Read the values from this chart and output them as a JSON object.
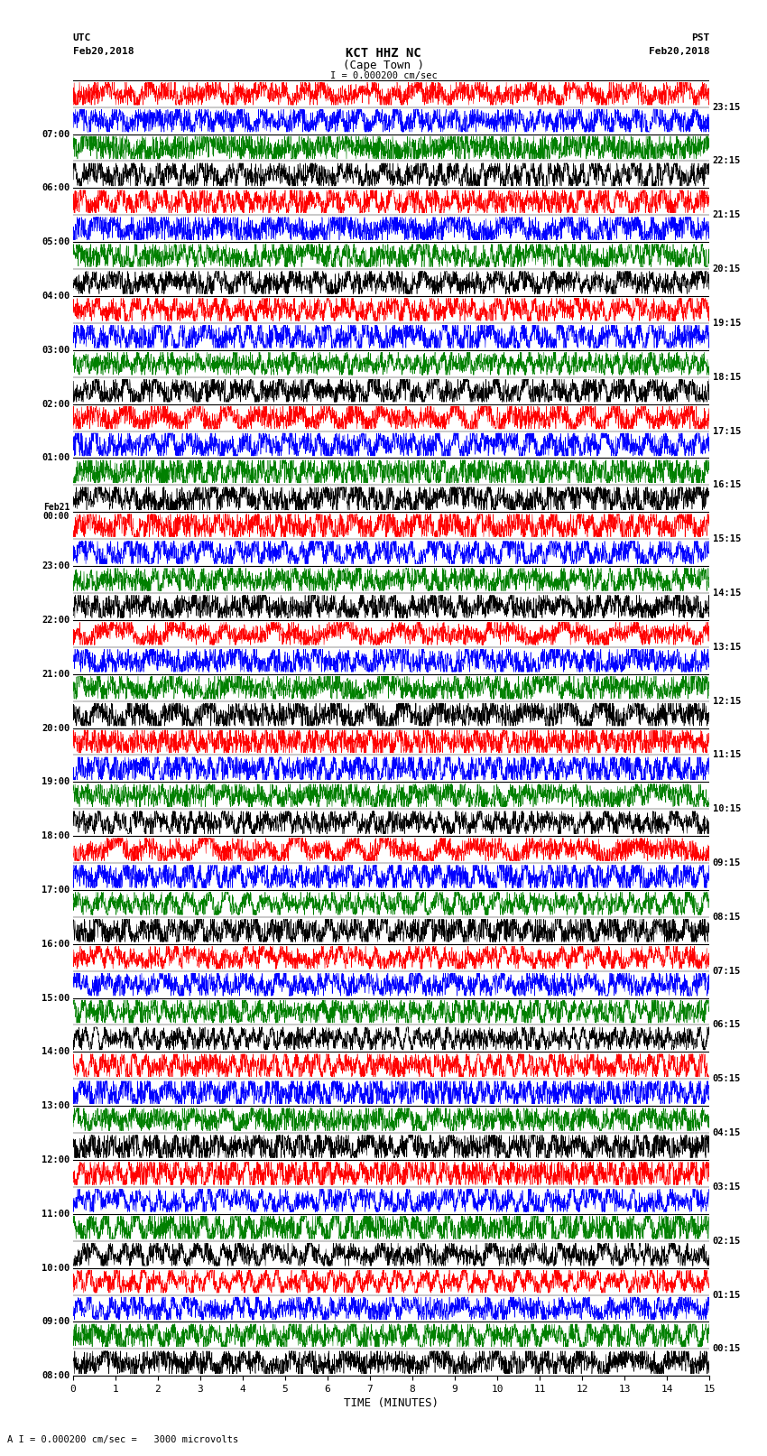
{
  "title_line1": "KCT HHZ NC",
  "title_line2": "(Cape Town )",
  "scale_label": "I = 0.000200 cm/sec",
  "left_label_top": "UTC",
  "left_label_date": "Feb20,2018",
  "right_label_top": "PST",
  "right_label_date": "Feb20,2018",
  "xlabel": "TIME (MINUTES)",
  "bottom_note": "A I = 0.000200 cm/sec =   3000 microvolts",
  "left_times": [
    "08:00",
    "09:00",
    "10:00",
    "11:00",
    "12:00",
    "13:00",
    "14:00",
    "15:00",
    "16:00",
    "17:00",
    "18:00",
    "19:00",
    "20:00",
    "21:00",
    "22:00",
    "23:00",
    "Feb21\n00:00",
    "01:00",
    "02:00",
    "03:00",
    "04:00",
    "05:00",
    "06:00",
    "07:00"
  ],
  "right_times": [
    "00:15",
    "01:15",
    "02:15",
    "03:15",
    "04:15",
    "05:15",
    "06:15",
    "07:15",
    "08:15",
    "09:15",
    "10:15",
    "11:15",
    "12:15",
    "13:15",
    "14:15",
    "15:15",
    "16:15",
    "17:15",
    "18:15",
    "19:15",
    "20:15",
    "21:15",
    "22:15",
    "23:15"
  ],
  "n_rows": 24,
  "n_subrows": 2,
  "x_min": 0,
  "x_max": 15,
  "x_ticks": [
    0,
    1,
    2,
    3,
    4,
    5,
    6,
    7,
    8,
    9,
    10,
    11,
    12,
    13,
    14,
    15
  ],
  "subrow_colors": [
    [
      "red",
      "black"
    ],
    [
      "blue",
      "red"
    ],
    [
      "green",
      "blue"
    ],
    [
      "black",
      "green"
    ]
  ],
  "background": "white",
  "fig_width": 8.5,
  "fig_height": 16.13
}
